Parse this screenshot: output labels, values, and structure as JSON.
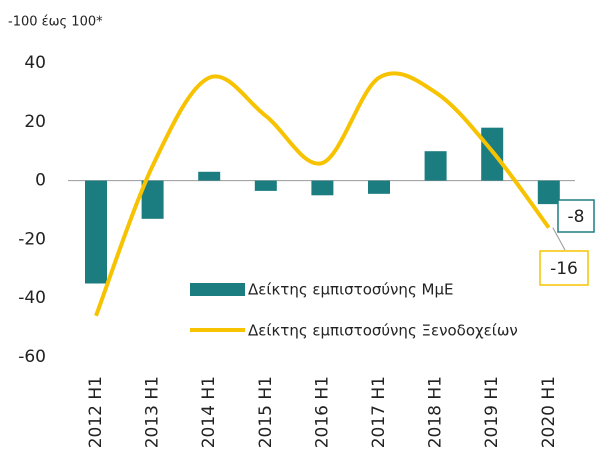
{
  "chart_data": {
    "type": "bar_line",
    "subtitle": "-100 έως 100*",
    "categories": [
      "2012 H1",
      "2013 H1",
      "2014 H1",
      "2015 H1",
      "2016 H1",
      "2017 H1",
      "2018 H1",
      "2019 H1",
      "2020 H1"
    ],
    "series": [
      {
        "name": "Δείκτης εμπιστοσύνης ΜμΕ",
        "type": "bar",
        "color": "#1b7d80",
        "values": [
          -35,
          -13,
          3,
          -3.5,
          -5,
          -4.5,
          10,
          18,
          -8
        ]
      },
      {
        "name": "Δείκτης εμπιστοσύνης Ξενοδοχείων",
        "type": "line",
        "color": "#f7c300",
        "values": [
          -46,
          5,
          35,
          22,
          6,
          35,
          30,
          10,
          -16
        ]
      }
    ],
    "ylim": [
      -60,
      40
    ],
    "yticks": [
      -60,
      -40,
      -20,
      0,
      20,
      40
    ],
    "grid": false,
    "legend": "lower right"
  }
}
